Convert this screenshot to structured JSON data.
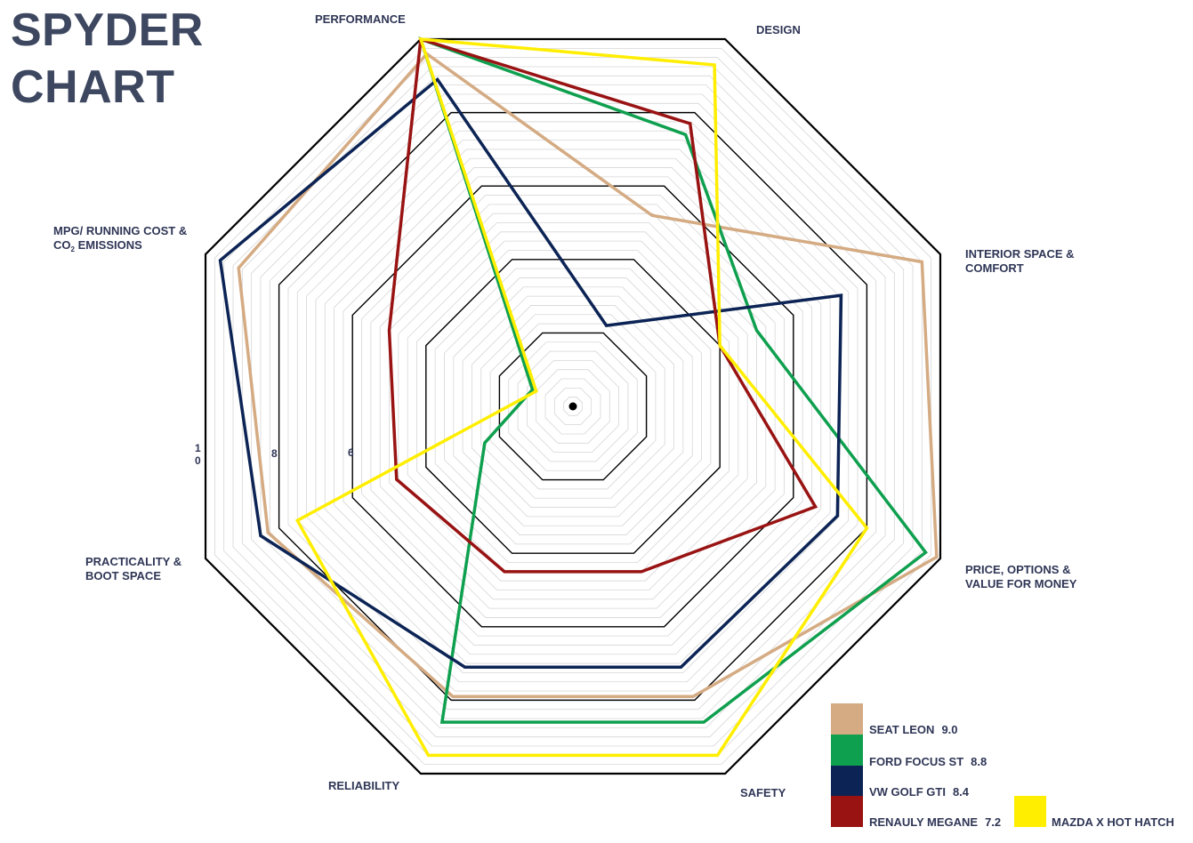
{
  "title": {
    "line1": "SPYDER",
    "line2": "CHART"
  },
  "chart_data": {
    "type": "radar",
    "axes": [
      "PERFORMANCE",
      "DESIGN",
      "INTERIOR SPACE & COMFORT",
      "PRICE, OPTIONS & VALUE FOR MONEY",
      "SAFETY",
      "RELIABILITY",
      "PRACTICALITY & BOOT SPACE",
      "MPG/ RUNNING COST & CO2 EMISSIONS"
    ],
    "range": [
      0,
      10
    ],
    "ring_labels": [
      "10",
      "8",
      "6"
    ],
    "series": [
      {
        "name": "SEAT LEON",
        "score": "9.0",
        "color": "#d4ab83",
        "values": [
          9.6,
          5.2,
          9.5,
          9.9,
          7.9,
          7.9,
          8.3,
          9.1
        ]
      },
      {
        "name": "FORD FOCUS ST",
        "score": "8.8",
        "color": "#0fa04f",
        "values": [
          10.0,
          7.4,
          5.0,
          9.6,
          8.6,
          8.6,
          2.4,
          1.1
        ]
      },
      {
        "name": "VW GOLF GTI",
        "score": "8.4",
        "color": "#0c2455",
        "values": [
          8.9,
          2.2,
          7.3,
          7.2,
          7.1,
          7.1,
          8.5,
          9.6
        ]
      },
      {
        "name": "RENAULY MEGANE",
        "score": "7.2",
        "color": "#991313",
        "values": [
          10.0,
          7.7,
          4.0,
          6.6,
          4.5,
          4.5,
          4.8,
          5.0
        ]
      },
      {
        "name": "MAZDA X HOT HATCH",
        "score": "",
        "color": "#ffee00",
        "values": [
          10.0,
          9.3,
          4.0,
          8.0,
          9.5,
          9.5,
          7.5,
          1.0
        ]
      }
    ]
  }
}
